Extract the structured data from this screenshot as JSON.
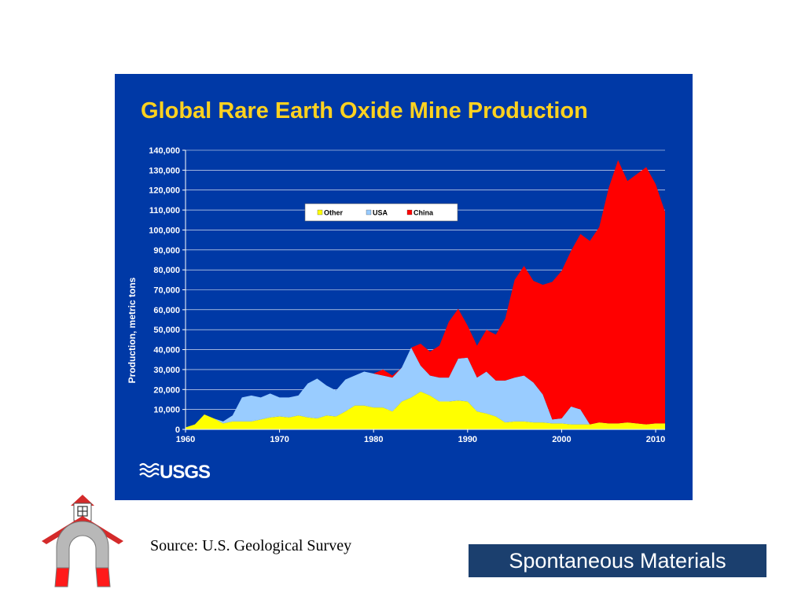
{
  "slide": {
    "source_caption": "Source: U.S. Geological Survey",
    "brand": "Spontaneous Materials",
    "usgs_logo_text": "USGS",
    "colors": {
      "chart_background": "#0039a6",
      "title": "#ffd21f",
      "brand_box": "#1b3f6e",
      "logo_roof": "#d42a2a"
    },
    "logo_icon": "schoolhouse-magnet-icon"
  },
  "chart_data": {
    "type": "area",
    "stacked": true,
    "title": "Global Rare Earth Oxide Mine Production",
    "ylabel": "Production, metric tons",
    "xlabel": "",
    "xlim": [
      1960,
      2011
    ],
    "ylim": [
      0,
      140000
    ],
    "grid": true,
    "legend_position": "top-center",
    "x_tick_labels": [
      "1960",
      "1970",
      "1980",
      "1990",
      "2000",
      "2010"
    ],
    "y_tick_labels": [
      "0",
      "10,000",
      "20,000",
      "30,000",
      "40,000",
      "50,000",
      "60,000",
      "70,000",
      "80,000",
      "90,000",
      "100,000",
      "110,000",
      "120,000",
      "130,000",
      "140,000"
    ],
    "x": [
      1960,
      1961,
      1962,
      1963,
      1964,
      1965,
      1966,
      1967,
      1968,
      1969,
      1970,
      1971,
      1972,
      1973,
      1974,
      1975,
      1976,
      1977,
      1978,
      1979,
      1980,
      1981,
      1982,
      1983,
      1984,
      1985,
      1986,
      1987,
      1988,
      1989,
      1990,
      1991,
      1992,
      1993,
      1994,
      1995,
      1996,
      1997,
      1998,
      1999,
      2000,
      2001,
      2002,
      2003,
      2004,
      2005,
      2006,
      2007,
      2008,
      2009,
      2010,
      2011
    ],
    "series": [
      {
        "name": "Other",
        "color": "#ffff00",
        "values": [
          1000,
          2500,
          7500,
          5500,
          3000,
          4000,
          4000,
          4000,
          5000,
          6000,
          6500,
          6000,
          7000,
          6000,
          5500,
          7000,
          6500,
          9000,
          12000,
          12000,
          11000,
          11000,
          9000,
          14000,
          16000,
          19000,
          17000,
          14000,
          14000,
          14500,
          14000,
          9000,
          8000,
          6500,
          3500,
          4000,
          4000,
          3500,
          3500,
          3000,
          3000,
          2500,
          2500,
          2500,
          3500,
          3000,
          3000,
          3500,
          3000,
          2500,
          3000,
          3000
        ]
      },
      {
        "name": "USA",
        "color": "#99ccff",
        "values": [
          0,
          0,
          0,
          0,
          1000,
          3000,
          12000,
          13000,
          11000,
          12000,
          9500,
          10000,
          10000,
          17000,
          20000,
          15000,
          13000,
          16000,
          15000,
          17000,
          17000,
          16000,
          17000,
          17000,
          25000,
          13000,
          10000,
          12000,
          12000,
          21000,
          22000,
          17000,
          21000,
          18000,
          21000,
          22000,
          23000,
          20000,
          14000,
          2000,
          2500,
          9000,
          7500,
          0,
          0,
          0,
          0,
          0,
          0,
          0,
          0,
          0
        ]
      },
      {
        "name": "China",
        "color": "#ff0000",
        "values": [
          0,
          0,
          0,
          0,
          0,
          0,
          0,
          0,
          0,
          0,
          0,
          0,
          0,
          0,
          0,
          0,
          0,
          0,
          0,
          0,
          0,
          3000,
          1000,
          0,
          0,
          11000,
          12000,
          16000,
          28000,
          25000,
          16000,
          16000,
          21000,
          23000,
          31000,
          49000,
          55000,
          51000,
          55000,
          69000,
          74000,
          78000,
          88000,
          92000,
          98000,
          118000,
          132000,
          121000,
          125000,
          129000,
          120000,
          106000
        ]
      }
    ]
  }
}
